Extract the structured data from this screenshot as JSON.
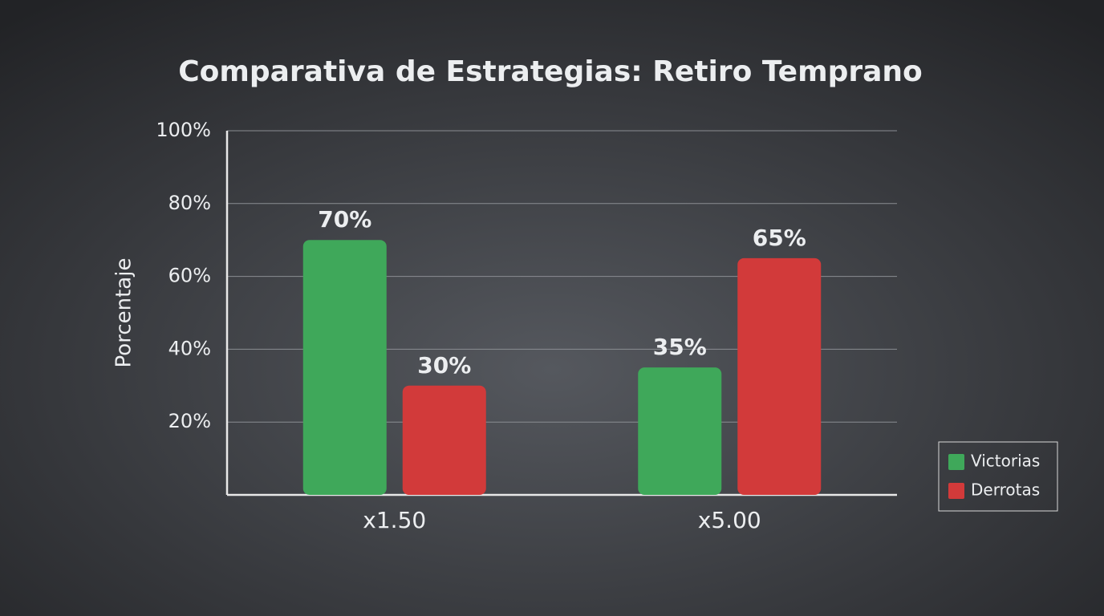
{
  "chart_data": {
    "type": "bar",
    "title": "Comparativa de Estrategias: Retiro Temprano",
    "y_label": "Porcentaje",
    "categories": [
      "x1.50",
      "x5.00"
    ],
    "series": [
      {
        "name": "Victorias",
        "color": "#3fa85a",
        "values": [
          70,
          35
        ],
        "value_labels": [
          "70%",
          "35%"
        ]
      },
      {
        "name": "Derrotas",
        "color": "#d23a3a",
        "values": [
          30,
          65
        ],
        "value_labels": [
          "30%",
          "65%"
        ]
      }
    ],
    "ylim": [
      0,
      100
    ],
    "yticks": [
      {
        "value": 20,
        "label": "20%"
      },
      {
        "value": 40,
        "label": "40%"
      },
      {
        "value": 60,
        "label": "60%"
      },
      {
        "value": 80,
        "label": "80%"
      },
      {
        "value": 100,
        "label": "100%"
      }
    ],
    "grid": true,
    "legend": "right"
  }
}
